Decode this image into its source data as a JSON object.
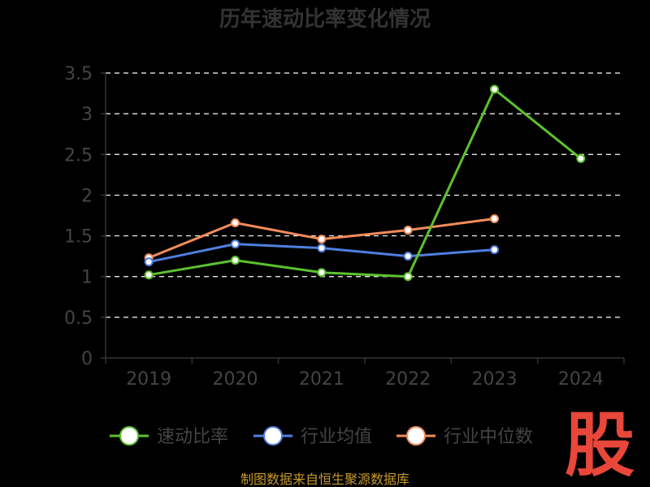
{
  "chart_data": {
    "type": "line",
    "title": "历年速动比率变化情况",
    "categories": [
      "2019",
      "2020",
      "2021",
      "2022",
      "2023",
      "2024"
    ],
    "ylim": [
      0,
      3.5
    ],
    "yticks": [
      "0",
      "0.5",
      "1",
      "1.5",
      "2",
      "2.5",
      "3",
      "3.5"
    ],
    "ytick_values": [
      0,
      0.5,
      1,
      1.5,
      2,
      2.5,
      3,
      3.5
    ],
    "grid": true,
    "legend_position": "bottom",
    "series": [
      {
        "name": "速动比率",
        "color": "#5cc22e",
        "values": [
          1.02,
          1.2,
          1.05,
          1.0,
          3.3,
          2.45
        ]
      },
      {
        "name": "行业均值",
        "color": "#4f7fe0",
        "values": [
          1.18,
          1.4,
          1.35,
          1.25,
          1.33,
          null
        ]
      },
      {
        "name": "行业中位数",
        "color": "#f28c5c",
        "values": [
          1.23,
          1.66,
          1.46,
          1.57,
          1.71,
          null
        ]
      }
    ]
  },
  "source_note": "制图数据来自恒生聚源数据库",
  "logo_text": "股"
}
